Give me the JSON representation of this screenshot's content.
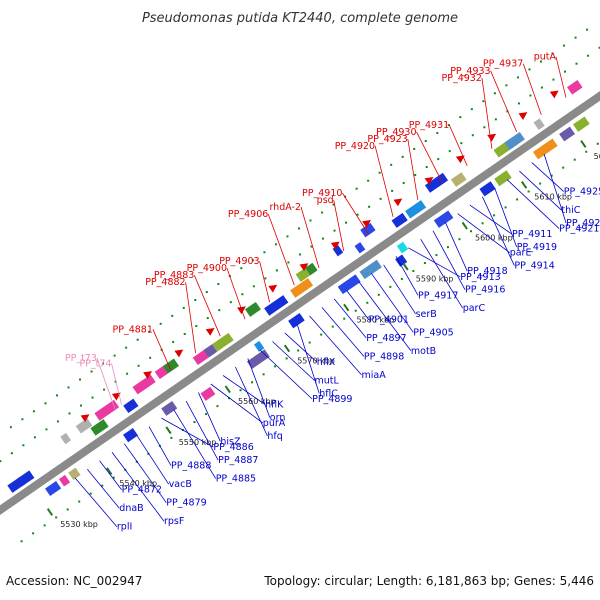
{
  "title": "Pseudomonas putida KT2440, complete genome",
  "accession": "Accession: NC_002947",
  "summary": "Topology: circular; Length: 6,181,863 bp; Genes: 5,446",
  "colors": {
    "backbone": "#8a8a8a",
    "highlight": "#dd0000",
    "pseudo": "#ee88bb",
    "gene": "#0000cc",
    "tick": "#227722",
    "dot": "#118811"
  },
  "scale_labels": [
    "5530 kbp",
    "5540 kbp",
    "5550 kbp",
    "5560 kbp",
    "5570 kbp",
    "5580 kbp",
    "5590 kbp",
    "5600 kbp",
    "5610 kbp",
    "5620 kbp"
  ],
  "highlight_labels": [
    "putA",
    "PP_4937",
    "PP_4933",
    "PP_4932",
    "PP_4931",
    "PP_4930",
    "PP_4923",
    "PP_4920",
    "PP_4910",
    "psd",
    "rhdA-2",
    "PP_4906",
    "PP_4903",
    "PP_4900",
    "PP_4883",
    "PP_4882",
    "PP_4881"
  ],
  "pseudo_labels": [
    "PP_t74",
    "PP_t73"
  ],
  "gene_labels": [
    "PP_4929",
    "kdtA",
    "PP_4926",
    "PP_4927",
    "PP_4924",
    "PP_4925",
    "thiC",
    "PP_4921",
    "PP_4919",
    "PP_4914",
    "PP_4911",
    "parE",
    "PP_4918",
    "PP_4916",
    "parC",
    "PP_4913",
    "PP_4917",
    "serB",
    "PP_4905",
    "motB",
    "PP_4901",
    "PP_4897",
    "PP_4898",
    "miaA",
    "hflC",
    "hflX",
    "mutL",
    "PP_4899",
    "orn",
    "hfq",
    "hflK",
    "purA",
    "hisZ",
    "PP_4887",
    "PP_4885",
    "PP_4886",
    "PP_4888",
    "vacB",
    "PP_4879",
    "rpsF",
    "PP_4872",
    "dnaB",
    "rplI"
  ]
}
